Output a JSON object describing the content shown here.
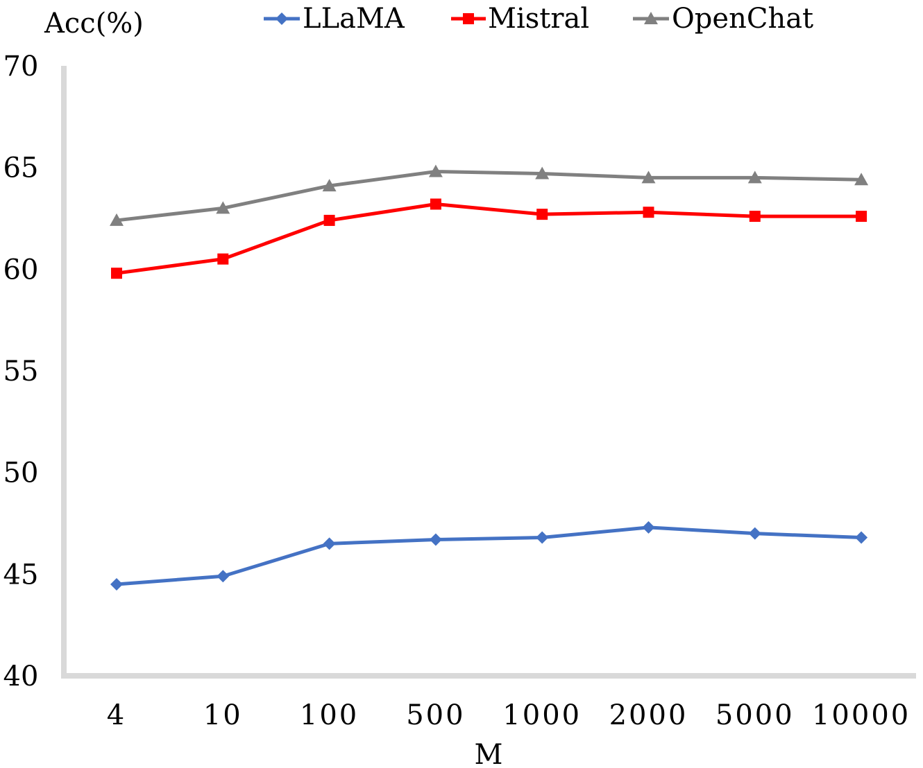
{
  "chart_data": {
    "type": "line",
    "title": "",
    "xlabel": "M",
    "ylabel": "Acc(%)",
    "categories": [
      "4",
      "10",
      "100",
      "500",
      "1000",
      "2000",
      "5000",
      "10000"
    ],
    "ylim": [
      40,
      70
    ],
    "yticks": [
      "40",
      "45",
      "50",
      "55",
      "60",
      "65",
      "70"
    ],
    "grid": false,
    "legend": "top",
    "series": [
      {
        "name": "LLaMA",
        "color": "#4472C4",
        "marker": "diamond",
        "values": [
          44.5,
          44.9,
          46.5,
          46.7,
          46.8,
          47.3,
          47.0,
          46.8
        ]
      },
      {
        "name": "Mistral",
        "color": "#FF0000",
        "marker": "square",
        "values": [
          59.8,
          60.5,
          62.4,
          63.2,
          62.7,
          62.8,
          62.6,
          62.6
        ]
      },
      {
        "name": "OpenChat",
        "color": "#808080",
        "marker": "triangle",
        "values": [
          62.4,
          63.0,
          64.1,
          64.8,
          64.7,
          64.5,
          64.5,
          64.4
        ]
      }
    ]
  }
}
